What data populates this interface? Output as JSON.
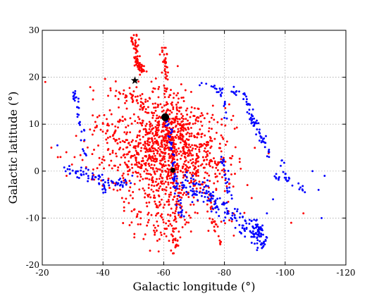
{
  "chart_data": {
    "type": "scatter",
    "title": "",
    "xlabel": "Galactic longitude (°)",
    "ylabel": "Galactic latitude (°)",
    "xlim": [
      -20,
      -120
    ],
    "ylim": [
      -20,
      30
    ],
    "xticks": [
      -20,
      -40,
      -60,
      -80,
      -100,
      -120
    ],
    "yticks": [
      -20,
      -10,
      0,
      10,
      20,
      30
    ],
    "grid": true,
    "colors": {
      "red_series": "#ff0000",
      "blue_series": "#0000ff",
      "markers": "#000000"
    },
    "red_clusters": [
      {
        "cx": -62,
        "cy": 6,
        "sx": 6,
        "sy": 5,
        "n": 650
      },
      {
        "cx": -57,
        "cy": 0,
        "sx": 7,
        "sy": 6,
        "n": 180
      },
      {
        "cx": -50,
        "cy": 2,
        "sx": 6,
        "sy": 4,
        "n": 100
      },
      {
        "cx": -72,
        "cy": 3,
        "sx": 6,
        "sy": 5,
        "n": 160
      },
      {
        "cx": -78,
        "cy": -2,
        "sx": 4,
        "sy": 4,
        "n": 60
      },
      {
        "cx": -63,
        "cy": -8,
        "sx": 3,
        "sy": 4,
        "n": 80
      },
      {
        "cx": -57,
        "cy": -12,
        "sx": 4,
        "sy": 2,
        "n": 35
      },
      {
        "cx": -45,
        "cy": 8,
        "sx": 5,
        "sy": 4,
        "n": 55
      },
      {
        "cx": -37,
        "cy": 5,
        "sx": 4,
        "sy": 5,
        "n": 35
      },
      {
        "cx": -52,
        "cy": 16,
        "sx": 5,
        "sy": 2,
        "n": 35
      }
    ],
    "red_tracks": [
      {
        "pts": [
          [
            -50,
            28.5
          ],
          [
            -51,
            25.5
          ],
          [
            -51.5,
            22.5
          ],
          [
            -53,
            21.5
          ]
        ],
        "n": 70,
        "jit": 0.5
      },
      {
        "pts": [
          [
            -60,
            26
          ],
          [
            -60.5,
            23
          ],
          [
            -61,
            20
          ],
          [
            -61,
            16
          ]
        ],
        "n": 40,
        "jit": 0.5
      },
      {
        "pts": [
          [
            -44,
            16.5
          ],
          [
            -48,
            16
          ],
          [
            -54,
            15
          ],
          [
            -58,
            14
          ]
        ],
        "n": 28,
        "jit": 0.4
      },
      {
        "pts": [
          [
            -62,
            -10
          ],
          [
            -63,
            -14
          ],
          [
            -64.5,
            -16.5
          ]
        ],
        "n": 25,
        "jit": 0.5
      },
      {
        "pts": [
          [
            -76,
            -10
          ],
          [
            -78,
            -14
          ],
          [
            -79,
            -16
          ]
        ],
        "n": 18,
        "jit": 0.4
      }
    ],
    "blue_tracks": [
      {
        "pts": [
          [
            -30,
            17.5
          ],
          [
            -32,
            13
          ],
          [
            -33,
            9
          ],
          [
            -34,
            4
          ],
          [
            -35,
            -3
          ]
        ],
        "n": 38,
        "jit": 0.5
      },
      {
        "pts": [
          [
            -27,
            0.5
          ],
          [
            -30,
            0
          ],
          [
            -33,
            -1
          ],
          [
            -36,
            -1.5
          ],
          [
            -40,
            -2
          ],
          [
            -45,
            -2.5
          ],
          [
            -50,
            -2
          ]
        ],
        "n": 60,
        "jit": 0.6
      },
      {
        "pts": [
          [
            -39,
            0
          ],
          [
            -40,
            -3
          ],
          [
            -41,
            -4.5
          ]
        ],
        "n": 14,
        "jit": 0.4
      },
      {
        "pts": [
          [
            -61,
            11
          ],
          [
            -62,
            8
          ],
          [
            -63,
            4
          ],
          [
            -63.5,
            0
          ],
          [
            -64,
            -3
          ],
          [
            -65,
            -7
          ],
          [
            -66,
            -10
          ]
        ],
        "n": 60,
        "jit": 0.5
      },
      {
        "pts": [
          [
            -66,
            -2
          ],
          [
            -70,
            -4
          ],
          [
            -74,
            -5
          ],
          [
            -78,
            -7
          ],
          [
            -82,
            -9
          ],
          [
            -86,
            -11
          ],
          [
            -89,
            -13
          ],
          [
            -92,
            -15
          ]
        ],
        "n": 160,
        "jit": 1.1
      },
      {
        "pts": [
          [
            -72,
            18.5
          ],
          [
            -76,
            18
          ],
          [
            -79,
            17
          ],
          [
            -80,
            14
          ],
          [
            -80,
            11
          ]
        ],
        "n": 25,
        "jit": 0.4
      },
      {
        "pts": [
          [
            -82,
            17
          ],
          [
            -86,
            16.5
          ],
          [
            -88,
            14
          ],
          [
            -89,
            11
          ],
          [
            -91,
            9
          ],
          [
            -93,
            6
          ],
          [
            -95,
            3
          ]
        ],
        "n": 70,
        "jit": 0.5
      },
      {
        "pts": [
          [
            -89,
            -10
          ],
          [
            -91,
            -12
          ],
          [
            -92,
            -14
          ],
          [
            -93,
            -16
          ]
        ],
        "n": 45,
        "jit": 0.6
      },
      {
        "pts": [
          [
            -96,
            -1
          ],
          [
            -100,
            -2
          ],
          [
            -104,
            -3
          ],
          [
            -107,
            -4
          ]
        ],
        "n": 22,
        "jit": 0.5
      },
      {
        "pts": [
          [
            -79,
            4
          ],
          [
            -80,
            1
          ],
          [
            -81,
            -3
          ],
          [
            -82,
            -6
          ]
        ],
        "n": 25,
        "jit": 0.5
      },
      {
        "pts": [
          [
            -98,
            4
          ],
          [
            -99,
            1
          ],
          [
            -100,
            -1
          ]
        ],
        "n": 8,
        "jit": 0.3
      }
    ],
    "blue_points": [
      [
        -25,
        5.5
      ],
      [
        -111,
        -4
      ],
      [
        -112,
        -10
      ],
      [
        -113,
        -1
      ],
      [
        -109,
        0
      ],
      [
        -94,
        -9
      ],
      [
        -96,
        -6
      ]
    ],
    "red_points": [
      [
        -21,
        19
      ],
      [
        -23,
        5
      ],
      [
        -26,
        3
      ],
      [
        -28,
        -1
      ],
      [
        -102,
        -11
      ],
      [
        -106,
        -9
      ]
    ],
    "star_marker": [
      -50.5,
      19.3
    ],
    "big_dot_marker": [
      -60.5,
      11.5
    ],
    "small_dot_marker": [
      -63,
      0.2
    ]
  }
}
